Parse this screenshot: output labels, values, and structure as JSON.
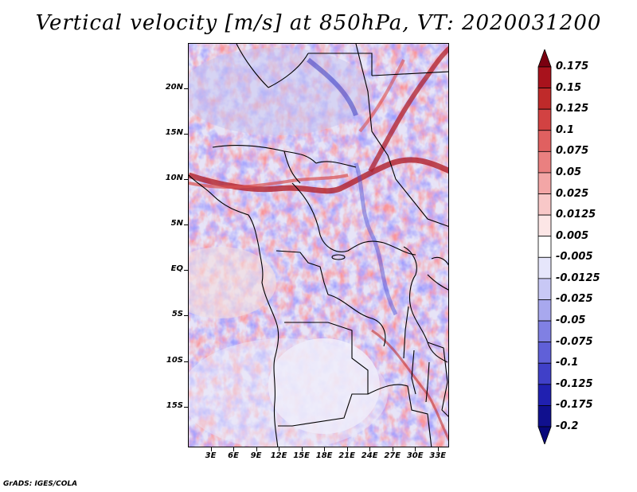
{
  "title": "Vertical velocity [m/s] at 850hPa, VT: 2020031200",
  "credit": "GrADS: IGES/COLA",
  "map": {
    "lat_labels": [
      "20N",
      "15N",
      "10N",
      "5N",
      "EQ",
      "5S",
      "10S",
      "15S"
    ],
    "lat_values": [
      20,
      15,
      10,
      5,
      0,
      -5,
      -10,
      -15
    ],
    "lon_labels": [
      "3E",
      "6E",
      "9E",
      "12E",
      "15E",
      "18E",
      "21E",
      "24E",
      "27E",
      "30E",
      "33E"
    ],
    "lon_values": [
      3,
      6,
      9,
      12,
      15,
      18,
      21,
      24,
      27,
      30,
      33
    ],
    "lat_range": [
      -19.5,
      25
    ],
    "lon_range": [
      0,
      34.5
    ]
  },
  "colorbar": {
    "labels": [
      "0.175",
      "0.15",
      "0.125",
      "0.1",
      "0.075",
      "0.05",
      "0.025",
      "0.0125",
      "0.005",
      "-0.005",
      "-0.0125",
      "-0.025",
      "-0.05",
      "-0.075",
      "-0.1",
      "-0.125",
      "-0.175",
      "-0.2"
    ],
    "colors": [
      "#7a0010",
      "#a8121c",
      "#bf2a2a",
      "#d24242",
      "#e06060",
      "#ea8080",
      "#f3a6a6",
      "#f8c8c8",
      "#fce6e6",
      "#ffffff",
      "#e6e6fb",
      "#c8c8f5",
      "#a8a8ee",
      "#8080e3",
      "#6060d8",
      "#4040c8",
      "#2020b0",
      "#10108e",
      "#08087a"
    ]
  }
}
